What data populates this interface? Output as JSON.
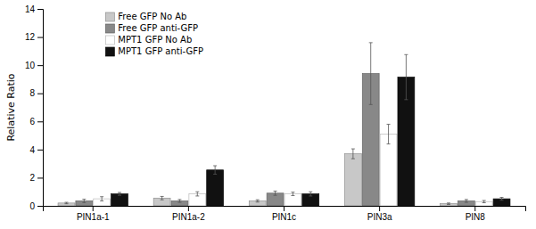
{
  "chart_data": {
    "type": "bar",
    "categories": [
      "PIN1a-1",
      "PIN1a-2",
      "PIN1c",
      "PIN3a",
      "PIN8"
    ],
    "series": [
      {
        "name": "Free GFP No Ab",
        "color": "#c8c8c8",
        "values": [
          0.2,
          0.55,
          0.35,
          3.7,
          0.15
        ],
        "errors": [
          0.05,
          0.12,
          0.08,
          0.35,
          0.05
        ]
      },
      {
        "name": "Free GFP anti-GFP",
        "color": "#888888",
        "values": [
          0.35,
          0.35,
          0.9,
          9.4,
          0.35
        ],
        "errors": [
          0.12,
          0.1,
          0.15,
          2.2,
          0.1
        ]
      },
      {
        "name": "MPT1 GFP No Ab",
        "color": "#ffffff",
        "values": [
          0.5,
          0.85,
          0.85,
          5.1,
          0.3
        ],
        "errors": [
          0.15,
          0.15,
          0.12,
          0.7,
          0.08
        ]
      },
      {
        "name": "MPT1 GFP anti-GFP",
        "color": "#111111",
        "values": [
          0.85,
          2.55,
          0.85,
          9.15,
          0.5
        ],
        "errors": [
          0.1,
          0.3,
          0.15,
          1.6,
          0.1
        ]
      }
    ],
    "ylabel": "Relative Ratio",
    "ylim": [
      0,
      14
    ],
    "yticks": [
      0,
      2,
      4,
      6,
      8,
      10,
      12,
      14
    ],
    "grid": false,
    "legend": "upper left"
  }
}
